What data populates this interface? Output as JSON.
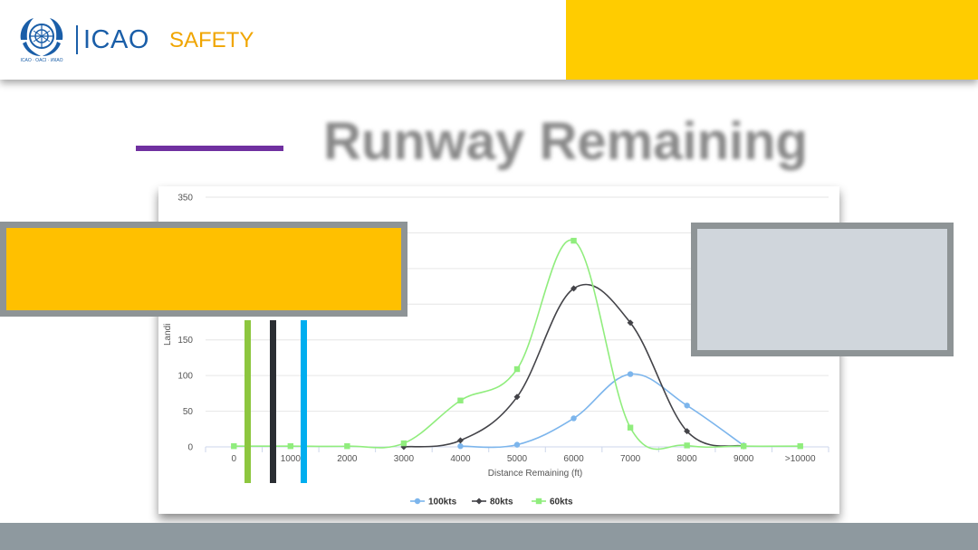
{
  "header": {
    "logo_text": "ICAO",
    "section_label": "SAFETY",
    "emblem_text": "ICAO · OACI · ИКАО",
    "accent_color": "#ffcc00"
  },
  "slide": {
    "title": "Runway Remaining",
    "title_line_color": "#7030a0"
  },
  "markers": [
    {
      "name": "green-marker",
      "color": "#8dc63f"
    },
    {
      "name": "black-marker",
      "color": "#2b2e33"
    },
    {
      "name": "blue-marker",
      "color": "#00aeef"
    }
  ],
  "chart_data": {
    "type": "line",
    "xlabel": "Distance Remaining (ft)",
    "ylabel": "Landi",
    "categories": [
      "0",
      "1000",
      "2000",
      "3000",
      "4000",
      "5000",
      "6000",
      "7000",
      "8000",
      "9000",
      ">10000"
    ],
    "ylim": [
      0,
      350
    ],
    "yticks": [
      0,
      50,
      100,
      150,
      200,
      250,
      300,
      350
    ],
    "visible_yticks": [
      "0",
      "50",
      "100",
      "150",
      "350"
    ],
    "grid": true,
    "legend_position": "bottom",
    "series": [
      {
        "name": "100kts",
        "color": "#7cb5ec",
        "marker": "circle",
        "values": [
          null,
          null,
          null,
          null,
          1,
          3,
          40,
          102,
          58,
          2,
          null
        ]
      },
      {
        "name": "80kts",
        "color": "#434348",
        "marker": "diamond",
        "values": [
          null,
          null,
          null,
          0,
          9,
          70,
          222,
          174,
          22,
          1,
          null
        ]
      },
      {
        "name": "60kts",
        "color": "#90ed7d",
        "marker": "square",
        "values": [
          1,
          1,
          1,
          5,
          65,
          109,
          289,
          27,
          2,
          1,
          1
        ]
      }
    ]
  }
}
